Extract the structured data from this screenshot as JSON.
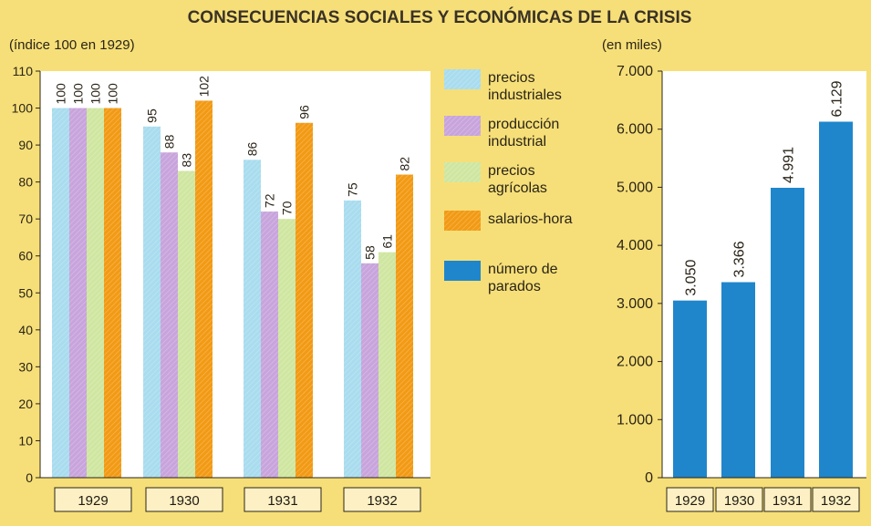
{
  "title": "CONSECUENCIAS SOCIALES Y ECONÓMICAS DE LA CRISIS",
  "colors": {
    "background": "#f6df78",
    "plot_background": "#ffffff",
    "precios_industriales": "#a8dcee",
    "produccion_industrial": "#c8a4dc",
    "precios_agricolas": "#cfe6a0",
    "salarios_hora": "#f29a14",
    "numero_parados": "#1f86cc"
  },
  "chart_data": [
    {
      "type": "bar",
      "title": "",
      "unit_label": "(índice 100  en 1929)",
      "ylim": [
        0,
        110
      ],
      "yticks": [
        0,
        10,
        20,
        30,
        40,
        50,
        60,
        70,
        80,
        90,
        100,
        110
      ],
      "categories": [
        "1929",
        "1930",
        "1931",
        "1932"
      ],
      "series": [
        {
          "name": "precios industriales",
          "values": [
            100,
            95,
            86,
            75
          ]
        },
        {
          "name": "producción industrial",
          "values": [
            100,
            88,
            72,
            58
          ]
        },
        {
          "name": "precios agrícolas",
          "values": [
            100,
            83,
            70,
            61
          ]
        },
        {
          "name": "salarios-hora",
          "values": [
            100,
            102,
            96,
            82
          ]
        }
      ],
      "grid": false
    },
    {
      "type": "bar",
      "title": "",
      "unit_label": "(en miles)",
      "ylim": [
        0,
        7000
      ],
      "yticks": [
        "0",
        "1.000",
        "2.000",
        "3.000",
        "4.000",
        "5.000",
        "6.000",
        "7.000"
      ],
      "categories": [
        "1929",
        "1930",
        "1931",
        "1932"
      ],
      "series": [
        {
          "name": "número de parados",
          "values": [
            3050,
            3366,
            4991,
            6129
          ],
          "labels": [
            "3.050",
            "3.366",
            "4.991",
            "6.129"
          ]
        }
      ],
      "grid": false
    }
  ],
  "legend": [
    {
      "lines": [
        "precios",
        "industriales"
      ],
      "color_key": "precios_industriales"
    },
    {
      "lines": [
        "producción",
        "industrial"
      ],
      "color_key": "produccion_industrial"
    },
    {
      "lines": [
        "precios",
        "agrícolas"
      ],
      "color_key": "precios_agricolas"
    },
    {
      "lines": [
        "salarios-hora"
      ],
      "color_key": "salarios_hora"
    },
    {
      "lines": [
        "número de",
        "parados"
      ],
      "color_key": "numero_parados"
    }
  ]
}
